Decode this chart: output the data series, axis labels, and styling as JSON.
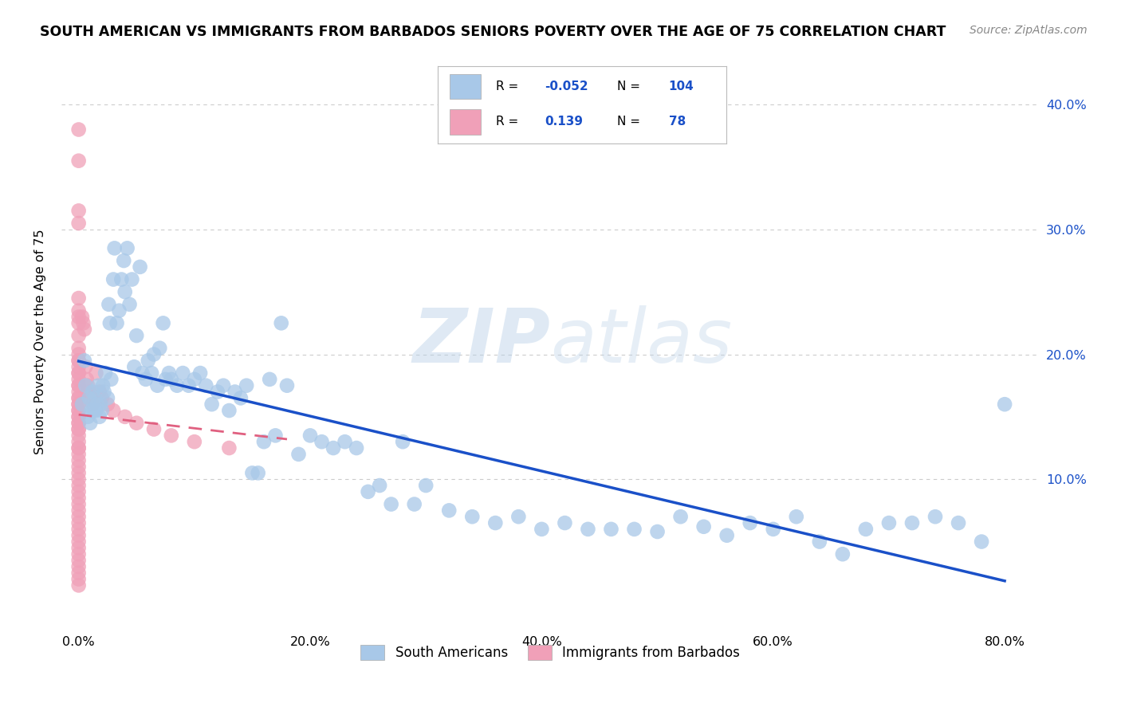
{
  "title": "SOUTH AMERICAN VS IMMIGRANTS FROM BARBADOS SENIORS POVERTY OVER THE AGE OF 75 CORRELATION CHART",
  "source": "Source: ZipAtlas.com",
  "ylabel": "Seniors Poverty Over the Age of 75",
  "x_tick_vals": [
    0.0,
    0.2,
    0.4,
    0.6,
    0.8
  ],
  "x_tick_labels": [
    "0.0%",
    "20.0%",
    "40.0%",
    "60.0%",
    "80.0%"
  ],
  "y_tick_vals": [
    0.1,
    0.2,
    0.3,
    0.4
  ],
  "y_tick_labels": [
    "10.0%",
    "20.0%",
    "30.0%",
    "40.0%"
  ],
  "xlim": [
    -0.015,
    0.83
  ],
  "ylim": [
    -0.02,
    0.44
  ],
  "scatter_blue_color": "#a8c8e8",
  "scatter_pink_color": "#f0a0b8",
  "trend_blue_color": "#1a50c8",
  "trend_pink_color": "#e06080",
  "grid_color": "#cccccc",
  "watermark_color": "#c5daf0",
  "r1": -0.052,
  "n1": 104,
  "r2": 0.139,
  "n2": 78,
  "legend_label1": "South Americans",
  "legend_label2": "Immigrants from Barbados",
  "sa_x": [
    0.003,
    0.005,
    0.006,
    0.008,
    0.009,
    0.01,
    0.011,
    0.012,
    0.013,
    0.014,
    0.015,
    0.016,
    0.017,
    0.018,
    0.019,
    0.02,
    0.021,
    0.022,
    0.023,
    0.025,
    0.026,
    0.027,
    0.028,
    0.03,
    0.031,
    0.033,
    0.035,
    0.037,
    0.039,
    0.04,
    0.042,
    0.044,
    0.046,
    0.048,
    0.05,
    0.053,
    0.055,
    0.058,
    0.06,
    0.063,
    0.065,
    0.068,
    0.07,
    0.073,
    0.075,
    0.078,
    0.08,
    0.085,
    0.09,
    0.095,
    0.1,
    0.105,
    0.11,
    0.115,
    0.12,
    0.125,
    0.13,
    0.135,
    0.14,
    0.145,
    0.15,
    0.155,
    0.16,
    0.165,
    0.17,
    0.175,
    0.18,
    0.19,
    0.2,
    0.21,
    0.22,
    0.23,
    0.24,
    0.25,
    0.26,
    0.27,
    0.28,
    0.29,
    0.3,
    0.32,
    0.34,
    0.36,
    0.38,
    0.4,
    0.42,
    0.44,
    0.46,
    0.48,
    0.5,
    0.52,
    0.54,
    0.56,
    0.58,
    0.6,
    0.62,
    0.64,
    0.66,
    0.68,
    0.7,
    0.72,
    0.74,
    0.76,
    0.78,
    0.8
  ],
  "sa_y": [
    0.16,
    0.195,
    0.175,
    0.15,
    0.165,
    0.145,
    0.155,
    0.17,
    0.155,
    0.165,
    0.155,
    0.16,
    0.175,
    0.15,
    0.16,
    0.155,
    0.175,
    0.17,
    0.185,
    0.165,
    0.24,
    0.225,
    0.18,
    0.26,
    0.285,
    0.225,
    0.235,
    0.26,
    0.275,
    0.25,
    0.285,
    0.24,
    0.26,
    0.19,
    0.215,
    0.27,
    0.185,
    0.18,
    0.195,
    0.185,
    0.2,
    0.175,
    0.205,
    0.225,
    0.18,
    0.185,
    0.18,
    0.175,
    0.185,
    0.175,
    0.18,
    0.185,
    0.175,
    0.16,
    0.17,
    0.175,
    0.155,
    0.17,
    0.165,
    0.175,
    0.105,
    0.105,
    0.13,
    0.18,
    0.135,
    0.225,
    0.175,
    0.12,
    0.135,
    0.13,
    0.125,
    0.13,
    0.125,
    0.09,
    0.095,
    0.08,
    0.13,
    0.08,
    0.095,
    0.075,
    0.07,
    0.065,
    0.07,
    0.06,
    0.065,
    0.06,
    0.06,
    0.06,
    0.058,
    0.07,
    0.062,
    0.055,
    0.065,
    0.06,
    0.07,
    0.05,
    0.04,
    0.06,
    0.065,
    0.065,
    0.07,
    0.065,
    0.05,
    0.16
  ],
  "bb_x": [
    0.0,
    0.0,
    0.0,
    0.0,
    0.0,
    0.0,
    0.0,
    0.0,
    0.0,
    0.0,
    0.0,
    0.0,
    0.0,
    0.0,
    0.0,
    0.0,
    0.0,
    0.0,
    0.0,
    0.0,
    0.0,
    0.0,
    0.0,
    0.0,
    0.0,
    0.0,
    0.0,
    0.0,
    0.0,
    0.0,
    0.0,
    0.0,
    0.0,
    0.0,
    0.0,
    0.0,
    0.0,
    0.0,
    0.0,
    0.0,
    0.0,
    0.0,
    0.0,
    0.0,
    0.0,
    0.0,
    0.0,
    0.0,
    0.0,
    0.0,
    0.0,
    0.0,
    0.0,
    0.0,
    0.0,
    0.0,
    0.0,
    0.0,
    0.003,
    0.004,
    0.005,
    0.006,
    0.007,
    0.008,
    0.009,
    0.01,
    0.012,
    0.015,
    0.018,
    0.02,
    0.025,
    0.03,
    0.04,
    0.05,
    0.065,
    0.08,
    0.1,
    0.13
  ],
  "bb_y": [
    0.38,
    0.355,
    0.315,
    0.305,
    0.245,
    0.235,
    0.23,
    0.225,
    0.215,
    0.205,
    0.2,
    0.195,
    0.195,
    0.19,
    0.185,
    0.185,
    0.18,
    0.175,
    0.175,
    0.17,
    0.165,
    0.165,
    0.16,
    0.16,
    0.155,
    0.155,
    0.15,
    0.15,
    0.145,
    0.145,
    0.14,
    0.14,
    0.135,
    0.13,
    0.125,
    0.125,
    0.12,
    0.115,
    0.11,
    0.105,
    0.1,
    0.095,
    0.09,
    0.085,
    0.08,
    0.075,
    0.07,
    0.065,
    0.06,
    0.055,
    0.05,
    0.045,
    0.04,
    0.035,
    0.03,
    0.025,
    0.02,
    0.015,
    0.23,
    0.225,
    0.22,
    0.19,
    0.18,
    0.175,
    0.17,
    0.165,
    0.16,
    0.185,
    0.17,
    0.165,
    0.16,
    0.155,
    0.15,
    0.145,
    0.14,
    0.135,
    0.13,
    0.125
  ]
}
